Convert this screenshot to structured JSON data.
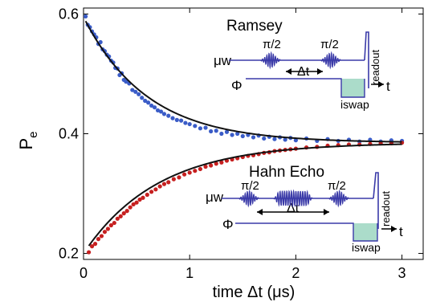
{
  "chart_data": {
    "type": "scatter",
    "xlabel": "time Δt (μs)",
    "ylabel_main": "P",
    "ylabel_sub": "e",
    "xlim": [
      0,
      3.2
    ],
    "ylim": [
      0.19,
      0.61
    ],
    "xticks": [
      0,
      1,
      2,
      3
    ],
    "yticks": [
      0.2,
      0.4,
      0.6
    ],
    "xtick_labels": [
      "0",
      "1",
      "2",
      "3"
    ],
    "ytick_labels": [
      "0.2",
      "0.4",
      "0.6"
    ],
    "grid": false,
    "series": [
      {
        "name": "Ramsey",
        "marker_color": "#3a5cc7",
        "fit_color": "#111111",
        "fit": {
          "model": "exp_decay",
          "y_inf": 0.385,
          "amplitude": 0.21,
          "tau_us": 0.6
        },
        "points": [
          [
            0.02,
            0.596
          ],
          [
            0.04,
            0.582
          ],
          [
            0.06,
            0.578
          ],
          [
            0.08,
            0.571
          ],
          [
            0.1,
            0.566
          ],
          [
            0.12,
            0.561
          ],
          [
            0.14,
            0.55
          ],
          [
            0.16,
            0.553
          ],
          [
            0.18,
            0.541
          ],
          [
            0.2,
            0.538
          ],
          [
            0.22,
            0.532
          ],
          [
            0.24,
            0.529
          ],
          [
            0.26,
            0.522
          ],
          [
            0.28,
            0.519
          ],
          [
            0.3,
            0.51
          ],
          [
            0.32,
            0.509
          ],
          [
            0.34,
            0.498
          ],
          [
            0.36,
            0.501
          ],
          [
            0.38,
            0.49
          ],
          [
            0.4,
            0.487
          ],
          [
            0.43,
            0.484
          ],
          [
            0.46,
            0.473
          ],
          [
            0.49,
            0.47
          ],
          [
            0.52,
            0.466
          ],
          [
            0.55,
            0.46
          ],
          [
            0.58,
            0.455
          ],
          [
            0.61,
            0.452
          ],
          [
            0.64,
            0.447
          ],
          [
            0.67,
            0.444
          ],
          [
            0.7,
            0.439
          ],
          [
            0.73,
            0.437
          ],
          [
            0.76,
            0.433
          ],
          [
            0.8,
            0.43
          ],
          [
            0.84,
            0.426
          ],
          [
            0.88,
            0.423
          ],
          [
            0.92,
            0.422
          ],
          [
            0.96,
            0.418
          ],
          [
            1.0,
            0.416
          ],
          [
            1.05,
            0.413
          ],
          [
            1.1,
            0.409
          ],
          [
            1.15,
            0.41
          ],
          [
            1.2,
            0.404
          ],
          [
            1.25,
            0.405
          ],
          [
            1.3,
            0.4
          ],
          [
            1.35,
            0.403
          ],
          [
            1.4,
            0.398
          ],
          [
            1.45,
            0.4
          ],
          [
            1.5,
            0.396
          ],
          [
            1.55,
            0.398
          ],
          [
            1.6,
            0.394
          ],
          [
            1.65,
            0.397
          ],
          [
            1.7,
            0.392
          ],
          [
            1.75,
            0.395
          ],
          [
            1.8,
            0.391
          ],
          [
            1.85,
            0.394
          ],
          [
            1.9,
            0.39
          ],
          [
            1.95,
            0.393
          ],
          [
            2.0,
            0.389
          ],
          [
            2.1,
            0.392
          ],
          [
            2.2,
            0.388
          ],
          [
            2.3,
            0.391
          ],
          [
            2.4,
            0.388
          ],
          [
            2.5,
            0.39
          ],
          [
            2.6,
            0.387
          ],
          [
            2.7,
            0.39
          ],
          [
            2.8,
            0.387
          ],
          [
            2.9,
            0.389
          ],
          [
            3.0,
            0.388
          ]
        ]
      },
      {
        "name": "Hahn Echo",
        "marker_color": "#c62020",
        "fit_color": "#111111",
        "fit": {
          "model": "exp_rise",
          "y_inf": 0.385,
          "amplitude": 0.185,
          "tau_us": 0.7
        },
        "points": [
          [
            0.05,
            0.202
          ],
          [
            0.08,
            0.212
          ],
          [
            0.11,
            0.216
          ],
          [
            0.14,
            0.224
          ],
          [
            0.17,
            0.229
          ],
          [
            0.2,
            0.236
          ],
          [
            0.23,
            0.241
          ],
          [
            0.26,
            0.247
          ],
          [
            0.29,
            0.251
          ],
          [
            0.32,
            0.258
          ],
          [
            0.35,
            0.262
          ],
          [
            0.38,
            0.267
          ],
          [
            0.41,
            0.271
          ],
          [
            0.44,
            0.277
          ],
          [
            0.47,
            0.282
          ],
          [
            0.5,
            0.285
          ],
          [
            0.53,
            0.29
          ],
          [
            0.56,
            0.293
          ],
          [
            0.6,
            0.298
          ],
          [
            0.64,
            0.303
          ],
          [
            0.68,
            0.307
          ],
          [
            0.72,
            0.312
          ],
          [
            0.76,
            0.316
          ],
          [
            0.8,
            0.319
          ],
          [
            0.85,
            0.324
          ],
          [
            0.9,
            0.327
          ],
          [
            0.95,
            0.332
          ],
          [
            1.0,
            0.335
          ],
          [
            1.05,
            0.338
          ],
          [
            1.1,
            0.341
          ],
          [
            1.15,
            0.345
          ],
          [
            1.2,
            0.347
          ],
          [
            1.25,
            0.35
          ],
          [
            1.3,
            0.352
          ],
          [
            1.35,
            0.355
          ],
          [
            1.4,
            0.357
          ],
          [
            1.45,
            0.359
          ],
          [
            1.5,
            0.361
          ],
          [
            1.55,
            0.363
          ],
          [
            1.6,
            0.364
          ],
          [
            1.65,
            0.366
          ],
          [
            1.7,
            0.368
          ],
          [
            1.75,
            0.369
          ],
          [
            1.8,
            0.371
          ],
          [
            1.85,
            0.372
          ],
          [
            1.9,
            0.373
          ],
          [
            1.95,
            0.374
          ],
          [
            2.0,
            0.375
          ],
          [
            2.1,
            0.377
          ],
          [
            2.2,
            0.378
          ],
          [
            2.3,
            0.38
          ],
          [
            2.4,
            0.381
          ],
          [
            2.5,
            0.382
          ],
          [
            2.6,
            0.382
          ],
          [
            2.7,
            0.383
          ],
          [
            2.8,
            0.384
          ],
          [
            2.9,
            0.384
          ],
          [
            3.0,
            0.385
          ]
        ]
      }
    ]
  },
  "inset_ramsey": {
    "title": "Ramsey",
    "mw_label": "μw",
    "phi_label": "Φ",
    "pulse1_label": "π/2",
    "pulse2_label": "π/2",
    "delay_label": "Δt",
    "iswap_label": "iswap",
    "readout_label": "readout",
    "time_label": "t"
  },
  "inset_echo": {
    "title": "Hahn Echo",
    "mw_label": "μw",
    "phi_label": "Φ",
    "pulse1_label": "π/2",
    "pulse2_label": "π/2",
    "delay_label": "Δt",
    "iswap_label": "iswap",
    "readout_label": "readout",
    "time_label": "t"
  },
  "colors": {
    "sequence_line": "#3a3aa8",
    "iswap_fill": "#8fd0b8",
    "axis": "#000000"
  }
}
